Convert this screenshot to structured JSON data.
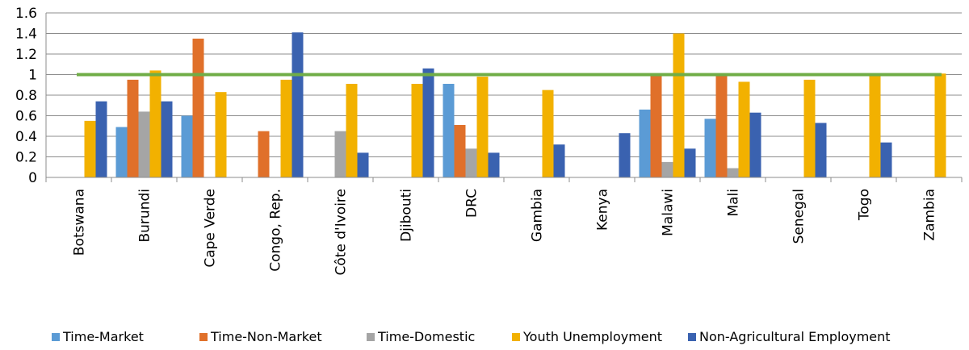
{
  "chart_data": {
    "type": "bar",
    "categories": [
      "Botswana",
      "Burundi",
      "Cape Verde",
      "Congo, Rep.",
      "Côte d'Ivoire",
      "Djibouti",
      "DRC",
      "Gambia",
      "Kenya",
      "Malawi",
      "Mali",
      "Senegal",
      "Togo",
      "Zambia"
    ],
    "series": [
      {
        "name": "Time-Market",
        "color": "#5B9BD5",
        "values": [
          null,
          0.49,
          0.6,
          null,
          null,
          null,
          0.91,
          null,
          null,
          0.66,
          0.57,
          null,
          null,
          null
        ]
      },
      {
        "name": "Time-Non-Market",
        "color": "#E0702A",
        "values": [
          null,
          0.95,
          1.35,
          0.45,
          null,
          null,
          0.51,
          null,
          null,
          0.99,
          0.99,
          null,
          null,
          null
        ]
      },
      {
        "name": "Time-Domestic",
        "color": "#A5A5A5",
        "values": [
          null,
          0.64,
          null,
          null,
          0.45,
          null,
          0.28,
          null,
          null,
          0.15,
          0.09,
          null,
          null,
          null
        ]
      },
      {
        "name": "Youth Unemployment",
        "color": "#F2B100",
        "values": [
          0.55,
          1.04,
          0.83,
          0.95,
          0.91,
          0.91,
          0.98,
          0.85,
          null,
          1.4,
          0.93,
          0.95,
          0.99,
          1.01
        ]
      },
      {
        "name": "Non-Agricultural Employment",
        "color": "#3A62B0",
        "values": [
          0.74,
          0.74,
          null,
          1.41,
          0.24,
          1.06,
          0.24,
          0.32,
          0.43,
          0.28,
          0.63,
          0.53,
          0.34,
          null
        ]
      }
    ],
    "reference_line": {
      "value": 1,
      "color": "#70AD47"
    },
    "ylim": [
      0,
      1.6
    ],
    "yticks": [
      "0",
      "0.2",
      "0.4",
      "0.6",
      "0.8",
      "1",
      "1.2",
      "1.4",
      "1.6"
    ],
    "grid": true,
    "legend_position": "bottom",
    "title": "",
    "xlabel": "",
    "ylabel": ""
  }
}
